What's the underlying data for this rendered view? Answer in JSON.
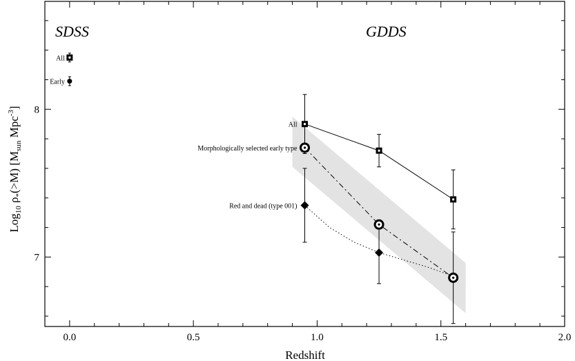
{
  "chart_data": {
    "type": "scatter",
    "title": "",
    "xlabel": "Redshift",
    "ylabel_main": "Log",
    "ylabel_sub": "10",
    "ylabel_rho": " ρ",
    "ylabel_rho_sub": "*",
    "ylabel_rest": "(>M) [M",
    "ylabel_msun_sub": "sun",
    "ylabel_mpc": " Mpc",
    "ylabel_mpc_sup": "-3",
    "ylabel_close": "]",
    "xlim": [
      -0.1,
      2.0
    ],
    "ylim": [
      6.53,
      8.73
    ],
    "x_ticks": [
      0.0,
      0.5,
      1.0,
      1.5,
      2.0
    ],
    "x_tick_labels": [
      "0.0",
      "0.5",
      "1.0",
      "1.5",
      "2.0"
    ],
    "y_ticks": [
      7,
      8
    ],
    "y_tick_labels": [
      "7",
      "8"
    ],
    "grid": false,
    "panel_labels": {
      "left": "SDSS",
      "right": "GDDS"
    },
    "shaded_band": {
      "color": "#e3e3e3",
      "polygon": [
        [
          0.9,
          7.95
        ],
        [
          1.6,
          6.96
        ],
        [
          1.6,
          6.62
        ],
        [
          0.9,
          7.61
        ]
      ]
    },
    "series": [
      {
        "name": "All",
        "marker": "square",
        "line": "solid",
        "points": [
          {
            "x": 0.95,
            "y": 7.9,
            "err_lo": 7.7,
            "err_hi": 8.1
          },
          {
            "x": 1.25,
            "y": 7.72,
            "err_lo": 7.61,
            "err_hi": 7.83
          },
          {
            "x": 1.55,
            "y": 7.39,
            "err_lo": 7.19,
            "err_hi": 7.59
          }
        ]
      },
      {
        "name": "Morphologically  selected early type",
        "marker": "ring",
        "line": "dashdot",
        "points": [
          {
            "x": 0.95,
            "y": 7.74
          },
          {
            "x": 1.25,
            "y": 7.22
          },
          {
            "x": 1.55,
            "y": 6.86,
            "err_lo": 6.55,
            "err_hi": 7.17
          }
        ]
      },
      {
        "name": "Red and dead (type 001)",
        "marker": "diamond",
        "line": "dotted",
        "curve": [
          [
            0.95,
            7.35
          ],
          [
            1.05,
            7.2
          ],
          [
            1.15,
            7.1
          ],
          [
            1.25,
            7.03
          ],
          [
            1.35,
            6.98
          ],
          [
            1.45,
            6.93
          ],
          [
            1.55,
            6.87
          ]
        ],
        "points": [
          {
            "x": 0.95,
            "y": 7.35,
            "err_lo": 7.1,
            "err_hi": 7.6
          },
          {
            "x": 1.25,
            "y": 7.03,
            "err_lo": 6.82,
            "err_hi": 7.24
          }
        ]
      }
    ],
    "sdss_points": [
      {
        "label": "All",
        "marker": "square",
        "x": 0.0,
        "y": 8.35,
        "err_lo": 8.32,
        "err_hi": 8.38
      },
      {
        "label": "Early",
        "marker": "circle",
        "x": 0.0,
        "y": 8.19,
        "err_lo": 8.16,
        "err_hi": 8.22
      }
    ]
  }
}
